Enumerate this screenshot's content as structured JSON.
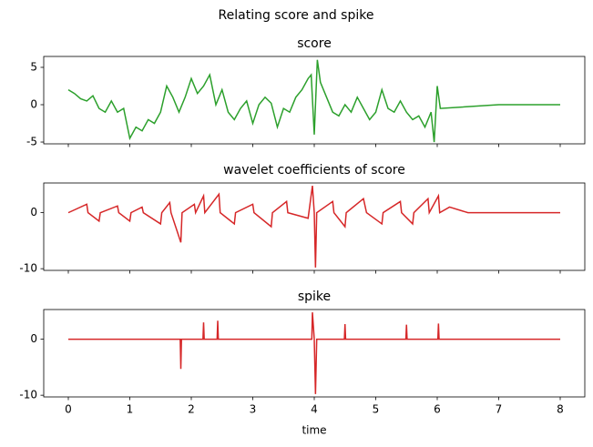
{
  "title": "Relating score and spike",
  "chart_data": [
    {
      "type": "line",
      "title": "score",
      "color": "#2ca02c",
      "x": [
        0,
        0.1,
        0.2,
        0.3,
        0.4,
        0.5,
        0.6,
        0.7,
        0.8,
        0.9,
        1.0,
        1.1,
        1.2,
        1.3,
        1.4,
        1.5,
        1.6,
        1.7,
        1.8,
        1.9,
        2.0,
        2.1,
        2.2,
        2.3,
        2.4,
        2.5,
        2.6,
        2.7,
        2.8,
        2.9,
        3.0,
        3.1,
        3.2,
        3.3,
        3.4,
        3.5,
        3.6,
        3.7,
        3.8,
        3.9,
        3.95,
        4.0,
        4.05,
        4.1,
        4.2,
        4.3,
        4.4,
        4.5,
        4.6,
        4.7,
        4.8,
        4.9,
        5.0,
        5.1,
        5.2,
        5.3,
        5.4,
        5.5,
        5.6,
        5.7,
        5.8,
        5.9,
        5.95,
        6.0,
        6.05,
        7,
        8
      ],
      "values": [
        2,
        1.5,
        0.8,
        0.5,
        1.2,
        -0.5,
        -1,
        0.5,
        -1,
        -0.5,
        -4.5,
        -3,
        -3.5,
        -2,
        -2.5,
        -1,
        2.5,
        1,
        -1,
        1,
        3.5,
        1.5,
        2.5,
        4,
        0,
        2,
        -1,
        -2,
        -0.5,
        0.5,
        -2.5,
        0,
        1,
        0.2,
        -3,
        -0.5,
        -1,
        1,
        2,
        3.5,
        4,
        -4,
        6,
        3,
        1,
        -1,
        -1.5,
        0,
        -1,
        1,
        -0.5,
        -2,
        -1,
        2,
        -0.5,
        -1,
        0.5,
        -1,
        -2,
        -1.5,
        -3,
        -1,
        -5,
        2.5,
        -0.5,
        0,
        0
      ],
      "xlim": [
        -0.4,
        8.4
      ],
      "ylim": [
        -5.24,
        6.46
      ],
      "xticks": [
        0,
        1,
        2,
        3,
        4,
        5,
        6,
        7,
        8
      ],
      "yticks": [
        -5,
        0,
        5
      ],
      "xtick_labels": false
    },
    {
      "type": "line",
      "title": "wavelet coefficients of score",
      "color": "#d62728",
      "x": [
        0,
        0.3,
        0.32,
        0.5,
        0.52,
        0.8,
        0.82,
        1.0,
        1.02,
        1.2,
        1.22,
        1.5,
        1.52,
        1.65,
        1.67,
        1.83,
        1.85,
        2.05,
        2.07,
        2.2,
        2.22,
        2.45,
        2.47,
        2.7,
        2.72,
        3.0,
        3.02,
        3.3,
        3.32,
        3.55,
        3.57,
        3.9,
        3.97,
        4.0,
        4.02,
        4.04,
        4.3,
        4.32,
        4.5,
        4.52,
        4.8,
        4.85,
        5.1,
        5.12,
        5.4,
        5.42,
        5.6,
        5.62,
        5.85,
        5.87,
        6.02,
        6.04,
        6.2,
        6.5,
        8
      ],
      "values": [
        0,
        1.5,
        0,
        -1.5,
        0,
        1.2,
        0,
        -1.5,
        0,
        1,
        0,
        -2,
        0,
        1.8,
        0,
        -5.3,
        0,
        1.5,
        0,
        3,
        0,
        3.3,
        0,
        -2,
        0,
        1.5,
        0,
        -2.5,
        0,
        2,
        0,
        -1,
        4.8,
        0,
        -9.8,
        0,
        2,
        0,
        -2.5,
        0,
        2.5,
        0,
        -2,
        0,
        2,
        0,
        -2,
        0,
        2.5,
        0,
        3,
        0,
        1,
        0,
        0
      ],
      "xlim": [
        -0.4,
        8.4
      ],
      "ylim": [
        -10.3,
        5.3
      ],
      "xticks": [
        0,
        1,
        2,
        3,
        4,
        5,
        6,
        7,
        8
      ],
      "yticks": [
        -10,
        0
      ],
      "xtick_labels": false
    },
    {
      "type": "line",
      "title": "spike",
      "color": "#d62728",
      "xlabel": "time",
      "x": [
        0,
        1.82,
        1.83,
        1.84,
        2.19,
        2.2,
        2.21,
        2.42,
        2.43,
        2.44,
        3.96,
        3.97,
        4.0,
        4.02,
        4.04,
        4.49,
        4.5,
        4.51,
        5.49,
        5.5,
        5.51,
        6.01,
        6.02,
        6.03,
        8
      ],
      "values": [
        0,
        0,
        -5.3,
        0,
        0,
        3,
        0,
        0,
        3.3,
        0,
        0,
        4.8,
        0,
        -9.8,
        0,
        0,
        2.7,
        0,
        0,
        2.6,
        0,
        0,
        2.8,
        0,
        0
      ],
      "xlim": [
        -0.4,
        8.4
      ],
      "ylim": [
        -10.3,
        5.3
      ],
      "xticks": [
        0,
        1,
        2,
        3,
        4,
        5,
        6,
        7,
        8
      ],
      "yticks": [
        -10,
        0
      ],
      "xtick_labels": true
    }
  ]
}
